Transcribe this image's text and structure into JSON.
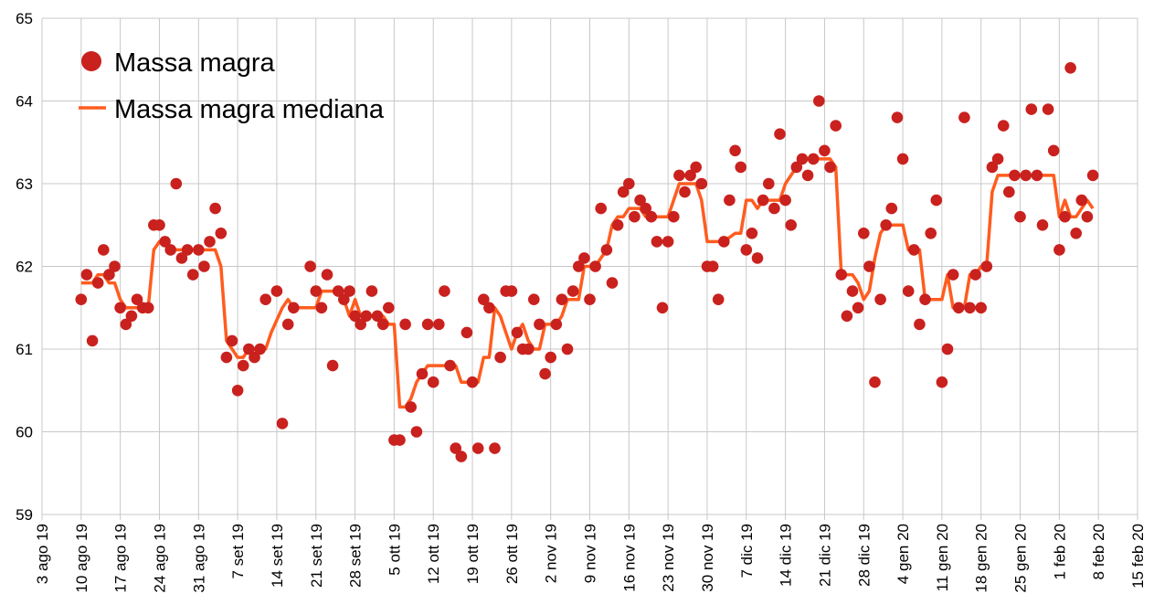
{
  "chart_data": {
    "type": "scatter",
    "title": "",
    "xlabel": "",
    "ylabel": "",
    "ylim": [
      59,
      65
    ],
    "yticks": [
      "59",
      "60",
      "61",
      "62",
      "63",
      "64",
      "65"
    ],
    "x_unit": "days since 3 ago 19",
    "xlim": [
      0,
      196
    ],
    "xtick_step_days": 7,
    "xticks": [
      "3 ago 19",
      "10 ago 19",
      "17 ago 19",
      "24 ago 19",
      "31 ago 19",
      "7 set 19",
      "14 set 19",
      "21 set 19",
      "28 set 19",
      "5 ott 19",
      "12 ott 19",
      "19 ott 19",
      "26 ott 19",
      "2 nov 19",
      "9 nov 19",
      "16 nov 19",
      "23 nov 19",
      "30 nov 19",
      "7 dic 19",
      "14 dic 19",
      "21 dic 19",
      "28 dic 19",
      "4 gen 20",
      "11 gen 20",
      "18 gen 20",
      "25 gen 20",
      "1 feb 20",
      "8 feb 20",
      "15 feb 20"
    ],
    "grid": true,
    "legend_position": "top-left",
    "series_start_day": 7,
    "series": [
      {
        "name": "Massa magra",
        "kind": "points",
        "color": "#c9211e",
        "values": [
          61.6,
          61.9,
          61.1,
          61.8,
          62.2,
          61.9,
          62.0,
          61.5,
          61.3,
          61.4,
          61.6,
          61.5,
          61.5,
          62.5,
          62.5,
          62.3,
          62.2,
          63.0,
          62.1,
          62.2,
          61.9,
          62.2,
          62.0,
          62.3,
          62.7,
          62.4,
          60.9,
          61.1,
          60.5,
          60.8,
          61.0,
          60.9,
          61.0,
          61.6,
          null,
          61.7,
          60.1,
          61.3,
          61.5,
          null,
          null,
          62.0,
          61.7,
          61.5,
          61.9,
          60.8,
          61.7,
          61.6,
          61.7,
          61.4,
          61.3,
          61.4,
          61.7,
          61.4,
          61.3,
          61.5,
          59.9,
          59.9,
          61.3,
          60.3,
          60.0,
          60.7,
          61.3,
          60.6,
          61.3,
          61.7,
          60.8,
          59.8,
          59.7,
          61.2,
          60.6,
          59.8,
          61.6,
          61.5,
          59.8,
          60.9,
          61.7,
          61.7,
          61.2,
          61.0,
          61.0,
          61.6,
          61.3,
          60.7,
          60.9,
          61.3,
          61.6,
          61.0,
          61.7,
          62.0,
          62.1,
          61.6,
          62.0,
          62.7,
          62.2,
          61.8,
          62.5,
          62.9,
          63.0,
          62.6,
          62.8,
          62.7,
          62.6,
          62.3,
          61.5,
          62.3,
          62.6,
          63.1,
          62.9,
          63.1,
          63.2,
          63.0,
          62.0,
          62.0,
          61.6,
          62.3,
          62.8,
          63.4,
          63.2,
          62.2,
          62.4,
          62.1,
          62.8,
          63.0,
          62.7,
          63.6,
          62.8,
          62.5,
          63.2,
          63.3,
          63.1,
          63.3,
          64.0,
          63.4,
          63.2,
          63.7,
          61.9,
          61.4,
          61.7,
          61.5,
          62.4,
          62.0,
          60.6,
          61.6,
          62.5,
          62.7,
          63.8,
          63.3,
          61.7,
          62.2,
          61.3,
          61.6,
          62.4,
          62.8,
          60.6,
          61.0,
          61.9,
          61.5,
          63.8,
          61.5,
          61.9,
          61.5,
          62.0,
          63.2,
          63.3,
          63.7,
          62.9,
          63.1,
          62.6,
          63.1,
          63.9,
          63.1,
          62.5,
          63.9,
          63.4,
          62.2,
          62.6,
          64.4,
          62.4,
          62.8,
          62.6,
          63.1
        ]
      },
      {
        "name": "Massa magra mediana",
        "kind": "line",
        "color": "#ff5c1f",
        "values": [
          61.8,
          61.8,
          61.8,
          61.9,
          61.9,
          61.8,
          61.8,
          61.6,
          61.5,
          61.5,
          61.5,
          61.5,
          61.5,
          62.2,
          62.3,
          62.3,
          62.2,
          62.2,
          62.2,
          62.2,
          62.2,
          62.2,
          62.2,
          62.2,
          62.2,
          62.0,
          61.1,
          61.0,
          60.9,
          60.9,
          61.0,
          61.0,
          61.0,
          61.0,
          61.2,
          61.35,
          61.5,
          61.6,
          61.5,
          61.5,
          61.5,
          61.5,
          61.5,
          61.7,
          61.7,
          61.7,
          61.7,
          61.6,
          61.4,
          61.6,
          61.4,
          61.4,
          61.4,
          61.4,
          61.4,
          61.3,
          61.3,
          60.3,
          60.3,
          60.4,
          60.6,
          60.7,
          60.8,
          60.8,
          60.8,
          60.8,
          60.8,
          60.8,
          60.6,
          60.6,
          60.6,
          60.6,
          60.9,
          60.9,
          61.5,
          61.4,
          61.2,
          61.0,
          61.2,
          61.3,
          61.1,
          61.0,
          61.0,
          61.3,
          61.3,
          61.3,
          61.4,
          61.6,
          61.6,
          61.6,
          62.0,
          62.0,
          62.0,
          62.1,
          62.2,
          62.5,
          62.6,
          62.6,
          62.7,
          62.7,
          62.7,
          62.6,
          62.6,
          62.6,
          62.6,
          62.6,
          62.8,
          63.0,
          63.0,
          63.0,
          63.0,
          62.8,
          62.3,
          62.3,
          62.3,
          62.3,
          62.35,
          62.4,
          62.4,
          62.8,
          62.8,
          62.7,
          62.8,
          62.8,
          62.8,
          62.8,
          63.0,
          63.1,
          63.2,
          63.3,
          63.3,
          63.3,
          63.3,
          63.3,
          63.3,
          63.2,
          61.9,
          61.9,
          61.9,
          61.8,
          61.6,
          61.7,
          62.1,
          62.4,
          62.5,
          62.5,
          62.5,
          62.5,
          62.2,
          62.2,
          62.2,
          61.6,
          61.6,
          61.6,
          61.6,
          61.9,
          61.5,
          61.5,
          61.5,
          61.9,
          61.9,
          62.0,
          62.0,
          62.9,
          63.1,
          63.1,
          63.1,
          63.1,
          63.1,
          63.1,
          63.1,
          63.1,
          63.1,
          63.1,
          63.1,
          62.6,
          62.8,
          62.6,
          62.6,
          62.7,
          62.8,
          62.7
        ]
      }
    ]
  },
  "legend": {
    "items": [
      "Massa magra",
      "Massa magra mediana"
    ]
  },
  "colors": {
    "grid": "#c8c8c8",
    "points": "#c9211e",
    "line": "#ff5c1f"
  }
}
